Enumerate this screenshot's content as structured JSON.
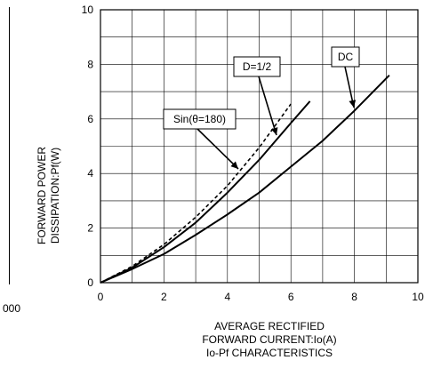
{
  "chart_data": {
    "type": "line",
    "x_ticks": [
      "0",
      "2",
      "4",
      "6",
      "8",
      "10"
    ],
    "y_ticks": [
      "0",
      "2",
      "4",
      "6",
      "8",
      "10"
    ],
    "xlim": [
      0,
      10
    ],
    "ylim": [
      0,
      10
    ],
    "grid": true,
    "xlabel_line1": "AVERAGE RECTIFIED",
    "xlabel_line2": "FORWARD CURRENT:Io(A)",
    "title": "Io-Pf CHARACTERISTICS",
    "ylabel_line1": "FORWARD POWER",
    "ylabel_line2": "DISSIPATION:Pf(W)",
    "series": [
      {
        "name": "DC",
        "dash": false,
        "x": [
          0,
          1,
          2,
          3,
          4,
          5,
          6,
          7,
          8,
          9.1
        ],
        "y": [
          0,
          0.5,
          1.05,
          1.75,
          2.5,
          3.3,
          4.25,
          5.2,
          6.3,
          7.6
        ]
      },
      {
        "name": "D=1/2",
        "dash": false,
        "x": [
          0,
          1,
          2,
          3,
          4,
          5,
          6,
          6.6
        ],
        "y": [
          0,
          0.55,
          1.3,
          2.2,
          3.3,
          4.5,
          5.85,
          6.65
        ]
      },
      {
        "name": "Sin(θ=180)",
        "dash": true,
        "x": [
          0,
          1,
          2,
          3,
          4,
          5,
          6
        ],
        "y": [
          0,
          0.6,
          1.4,
          2.4,
          3.55,
          4.95,
          6.55
        ]
      }
    ],
    "annotations": [
      {
        "label": "DC",
        "text": "DC"
      },
      {
        "label": "D=1/2",
        "text": "D=1/2"
      },
      {
        "label": "Sin(θ=180)",
        "text": "Sin(θ=180)"
      }
    ]
  },
  "left_fragment": {
    "tick_label": "000"
  }
}
